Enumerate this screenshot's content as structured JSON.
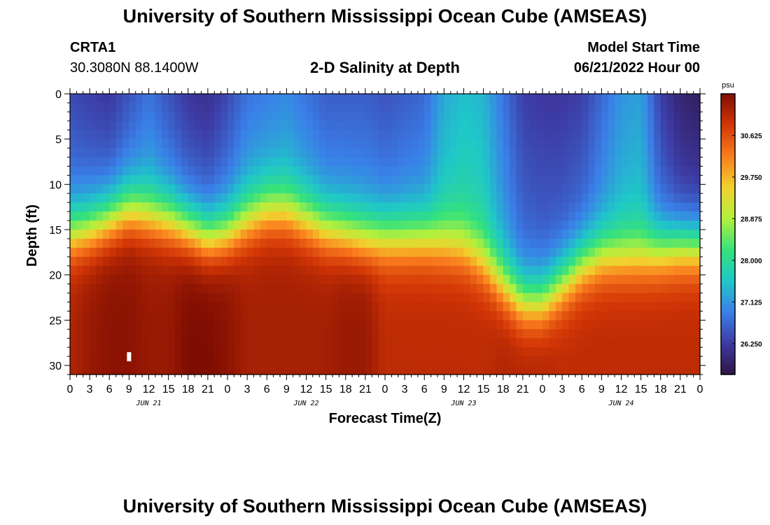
{
  "header": {
    "title": "University of Southern Mississippi Ocean Cube (AMSEAS)",
    "station_id": "CRTA1",
    "coordinates": "30.3080N  88.1400W",
    "model_start_label": "Model Start Time",
    "model_start_value": "06/21/2022 Hour 00"
  },
  "footer": {
    "title_repeat": "University of Southern Mississippi Ocean Cube (AMSEAS)"
  },
  "colors": {
    "colormap": [
      "#2e1446",
      "#3d3aa3",
      "#3a7fe8",
      "#1fc7c8",
      "#35e27b",
      "#b3f03d",
      "#f2d02d",
      "#fa7d1e",
      "#d23606",
      "#7f0d02"
    ]
  },
  "chart_data": {
    "type": "heatmap",
    "title": "2-D Salinity at Depth",
    "xlabel": "Forecast Time(Z)",
    "ylabel": "Depth (ft)",
    "xlim": [
      0,
      96
    ],
    "ylim": [
      31,
      0
    ],
    "x_tick_values": [
      0,
      3,
      6,
      9,
      12,
      15,
      18,
      21,
      24,
      27,
      30,
      33,
      36,
      39,
      42,
      45,
      48,
      51,
      54,
      57,
      60,
      63,
      66,
      69,
      72,
      75,
      78,
      81,
      84,
      87,
      90,
      93,
      96
    ],
    "x_tick_labels": [
      "0",
      "3",
      "6",
      "9",
      "12",
      "15",
      "18",
      "21",
      "0",
      "3",
      "6",
      "9",
      "12",
      "15",
      "18",
      "21",
      "0",
      "3",
      "6",
      "9",
      "12",
      "15",
      "18",
      "21",
      "0",
      "3",
      "6",
      "9",
      "12",
      "15",
      "18",
      "21",
      "0"
    ],
    "date_labels": [
      {
        "hour": 12,
        "label": "JUN 21"
      },
      {
        "hour": 36,
        "label": "JUN 22"
      },
      {
        "hour": 60,
        "label": "JUN 23"
      },
      {
        "hour": 84,
        "label": "JUN 24"
      }
    ],
    "y_ticks": [
      0,
      5,
      10,
      15,
      20,
      25,
      30
    ],
    "colorbar": {
      "unit": "psu",
      "min": 25.6,
      "max": 31.5,
      "tick_values": [
        30.625,
        29.75,
        28.875,
        28.0,
        27.125,
        26.25
      ],
      "tick_labels": [
        "30.625",
        "29.750",
        "28.875",
        "28.000",
        "27.125",
        "26.250"
      ]
    },
    "profile": {
      "hours": [
        0,
        3,
        6,
        9,
        12,
        15,
        18,
        21,
        24,
        27,
        30,
        33,
        36,
        39,
        42,
        45,
        48,
        51,
        54,
        57,
        60,
        63,
        66,
        69,
        72,
        75,
        78,
        81,
        84,
        87,
        90,
        93,
        96
      ],
      "halocline_depth_ft": [
        15.5,
        15.0,
        14.0,
        13.0,
        13.5,
        14.0,
        15.0,
        16.0,
        15.5,
        14.0,
        13.0,
        13.0,
        14.0,
        15.0,
        15.5,
        16.0,
        16.0,
        16.0,
        16.0,
        16.5,
        17.0,
        18.5,
        21.0,
        23.0,
        23.0,
        21.0,
        19.0,
        18.0,
        18.0,
        18.0,
        17.5,
        17.0,
        17.0
      ],
      "surface_psu": [
        26.4,
        26.3,
        26.2,
        26.5,
        26.8,
        26.5,
        26.2,
        26.1,
        26.4,
        26.8,
        26.9,
        27.0,
        26.8,
        26.6,
        26.6,
        26.6,
        26.5,
        26.6,
        26.7,
        27.3,
        27.5,
        27.4,
        26.8,
        26.3,
        26.2,
        26.2,
        26.3,
        26.7,
        27.1,
        27.2,
        26.3,
        25.9,
        25.8
      ],
      "bottom_psu": [
        31.1,
        31.3,
        31.4,
        31.4,
        31.3,
        31.3,
        31.5,
        31.5,
        31.4,
        31.2,
        31.2,
        31.2,
        31.2,
        31.2,
        31.3,
        31.3,
        31.0,
        31.0,
        31.0,
        31.0,
        31.0,
        31.0,
        31.1,
        31.1,
        31.1,
        31.0,
        31.0,
        31.0,
        31.0,
        31.0,
        31.0,
        31.0,
        31.0
      ]
    },
    "annotation": {
      "hour": 9,
      "depth_ft": 29.0,
      "label": ""
    }
  }
}
